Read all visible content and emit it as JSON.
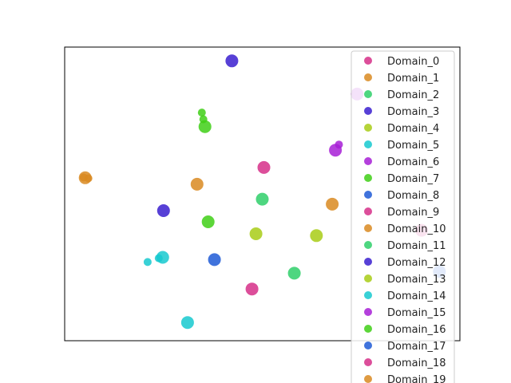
{
  "chart_data": {
    "type": "scatter",
    "title": "",
    "xlabel": "",
    "ylabel": "",
    "xlim": [
      0,
      100
    ],
    "ylim": [
      0,
      100
    ],
    "axis_ticks": false,
    "grid": false,
    "legend_position": "top-right",
    "series": [
      {
        "name": "Domain_0",
        "color": "#d62f88",
        "points": [
          [
            50.4,
            59.0
          ]
        ]
      },
      {
        "name": "Domain_1",
        "color": "#d98a21",
        "points": [
          [
            33.5,
            53.3
          ]
        ]
      },
      {
        "name": "Domain_2",
        "color": "#2fcf6a",
        "points": [
          [
            50.0,
            48.2
          ]
        ]
      },
      {
        "name": "Domain_3",
        "color": "#3a1fcf",
        "points": [
          [
            25.0,
            44.3
          ]
        ]
      },
      {
        "name": "Domain_4",
        "color": "#a8cc16",
        "points": [
          [
            48.4,
            36.4
          ]
        ]
      },
      {
        "name": "Domain_5",
        "color": "#16c9cf",
        "points": [
          [
            31.1,
            6.2
          ]
        ]
      },
      {
        "name": "Domain_6",
        "color": "#a71ed6",
        "points": [
          [
            68.5,
            64.9
          ],
          [
            69.4,
            66.8
          ]
        ]
      },
      {
        "name": "Domain_7",
        "color": "#3fcf16",
        "points": [
          [
            36.3,
            40.5
          ]
        ]
      },
      {
        "name": "Domain_8",
        "color": "#1f5bd6",
        "points": [
          [
            37.9,
            27.6
          ]
        ]
      },
      {
        "name": "Domain_9",
        "color": "#d62f88",
        "points": [
          [
            47.4,
            17.6
          ]
        ]
      },
      {
        "name": "Domain_10",
        "color": "#d98a21",
        "points": [
          [
            67.7,
            46.5
          ]
        ]
      },
      {
        "name": "Domain_11",
        "color": "#2fcf6a",
        "points": [
          [
            58.1,
            23.0
          ]
        ]
      },
      {
        "name": "Domain_12",
        "color": "#3a1fcf",
        "points": [
          [
            42.3,
            95.3
          ]
        ]
      },
      {
        "name": "Domain_13",
        "color": "#a8cc16",
        "points": [
          [
            63.7,
            35.8
          ]
        ]
      },
      {
        "name": "Domain_14",
        "color": "#16c9cf",
        "points": [
          [
            24.8,
            28.4
          ],
          [
            23.8,
            28.1
          ],
          [
            21.0,
            26.8
          ]
        ]
      },
      {
        "name": "Domain_15",
        "color": "#a71ed6",
        "points": [
          [
            74.0,
            84.0
          ]
        ]
      },
      {
        "name": "Domain_16",
        "color": "#3fcf16",
        "points": [
          [
            35.5,
            72.9
          ],
          [
            35.1,
            75.4
          ],
          [
            34.7,
            77.7
          ]
        ]
      },
      {
        "name": "Domain_17",
        "color": "#1f5bd6",
        "points": [
          [
            94.8,
            23.6
          ]
        ]
      },
      {
        "name": "Domain_18",
        "color": "#d62f88",
        "points": [
          [
            90.3,
            37.6
          ]
        ]
      },
      {
        "name": "Domain_19",
        "color": "#d98a21",
        "points": [
          [
            5.2,
            55.5
          ],
          [
            6.0,
            55.3
          ],
          [
            4.8,
            55.6
          ]
        ]
      }
    ]
  }
}
